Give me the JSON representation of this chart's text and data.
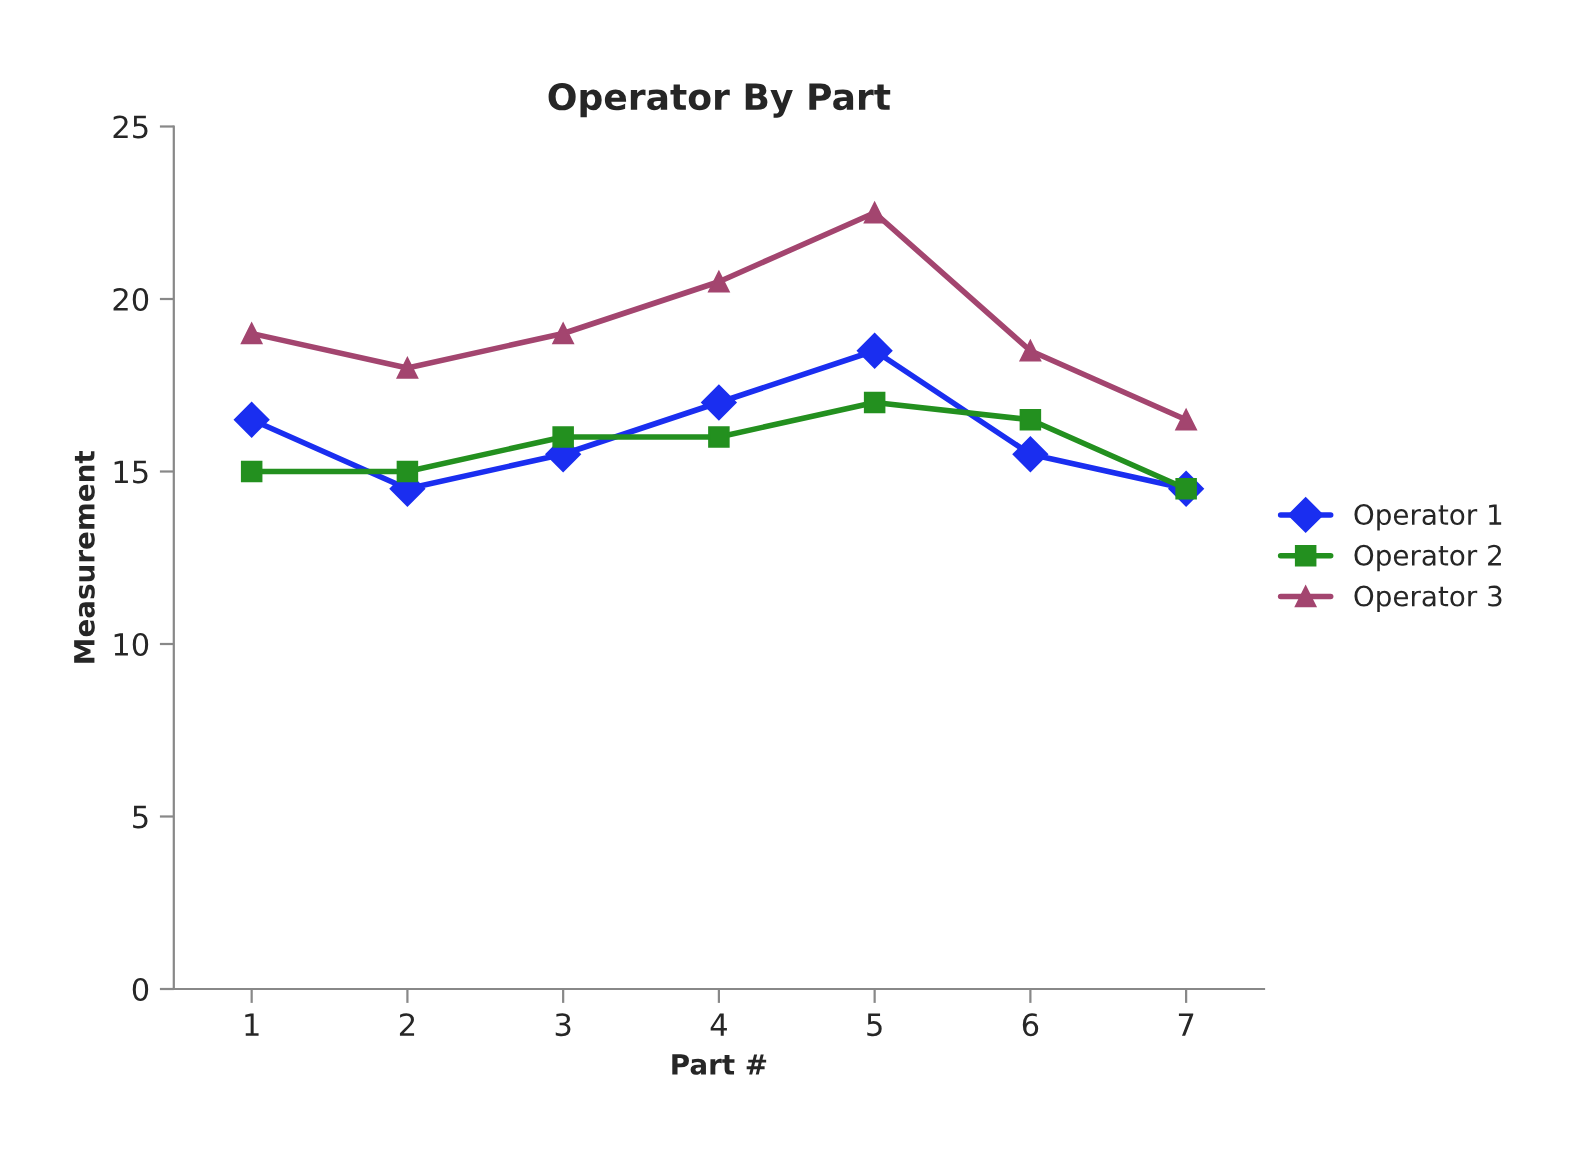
{
  "chart_data": {
    "type": "line",
    "title": "Operator By Part",
    "xlabel": "Part #",
    "ylabel": "Measurement",
    "categories": [
      "1",
      "2",
      "3",
      "4",
      "5",
      "6",
      "7"
    ],
    "series": [
      {
        "name": "Operator 1",
        "color": "#1a2ef0",
        "marker": "diamond",
        "values": [
          16.5,
          14.5,
          15.5,
          17,
          18.5,
          15.5,
          14.5
        ]
      },
      {
        "name": "Operator 2",
        "color": "#23901f",
        "marker": "square",
        "values": [
          15,
          15,
          16,
          16,
          17,
          16.5,
          14.5
        ]
      },
      {
        "name": "Operator 3",
        "color": "#a3456f",
        "marker": "triangle",
        "values": [
          19,
          18,
          19,
          20.5,
          22.5,
          18.5,
          16.5
        ]
      }
    ],
    "ylim": [
      0,
      25
    ],
    "yticks": [
      0,
      5,
      10,
      15,
      20,
      25
    ],
    "grid": false,
    "legend": "right",
    "line_style": "solid"
  }
}
